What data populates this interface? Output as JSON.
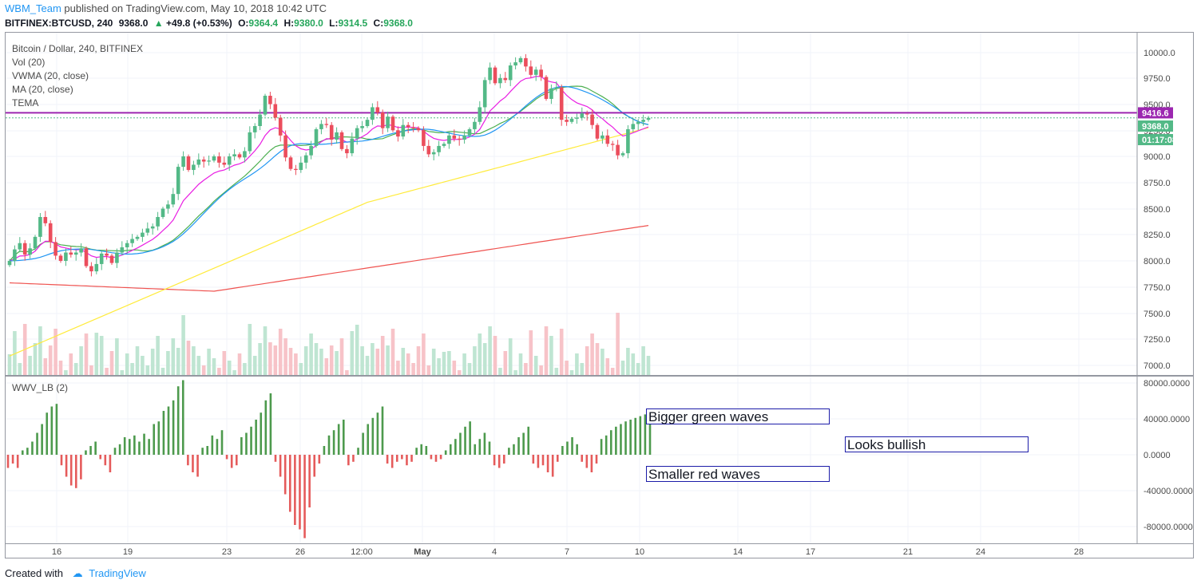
{
  "header": {
    "user": "WBM_Team",
    "published": "published on TradingView.com, May 10, 2018 10:42 UTC",
    "symbol": "BITFINEX:BTCUSD, 240",
    "last": "9368.0",
    "change": "+49.8 (+0.53%)",
    "open_label": "O:",
    "open": "9364.4",
    "high_label": "H:",
    "high": "9380.0",
    "low_label": "L:",
    "low": "9314.5",
    "close_label": "C:",
    "close": "9368.0"
  },
  "legend": [
    "Bitcoin / Dollar, 240, BITFINEX",
    "Vol (20)",
    "VWMA (20, close)",
    "MA (20, close)",
    "TEMA"
  ],
  "indicator_legend": "WWV_LB (2)",
  "price_badges": {
    "level": "9416.6",
    "last": "9368.0",
    "countdown": "01:17:08"
  },
  "annotations": {
    "green": "Bigger green waves",
    "bullish": "Looks bullish",
    "red": "Smaller red waves"
  },
  "footer": {
    "created": "Created with",
    "brand": "TradingView"
  },
  "colors": {
    "up": "#53b987",
    "down": "#eb4d5c",
    "vol_up": "#bfe5d2",
    "vol_down": "#f7c3c8",
    "tema": "#2196f3",
    "vwma": "#e91ee3",
    "ma20": "#4caf50",
    "ma50": "#ffeb3b",
    "ma200": "#ef5350",
    "level_line": "#9c27b0",
    "wave_up": "#4d9a4d",
    "wave_down": "#e55b5b",
    "accent": "#2196f3"
  },
  "chart_data": [
    {
      "type": "candlestick",
      "title": "Bitcoin / Dollar, 240, BITFINEX",
      "x_tick_labels": [
        "16",
        "19",
        "23",
        "26",
        "12:00",
        "May",
        "4",
        "7",
        "10",
        "14",
        "17",
        "21",
        "24",
        "28"
      ],
      "ylim": [
        6950,
        10100
      ],
      "y_tick_labels": [
        "10000.0",
        "9750.0",
        "9500.0",
        "9250.0",
        "9000.0",
        "8750.0",
        "8500.0",
        "8250.0",
        "8000.0",
        "7750.0",
        "7500.0",
        "7250.0",
        "7000.0"
      ],
      "horizontal_line": 9416.6,
      "close_series": [
        8000,
        8110,
        8170,
        8060,
        8120,
        8230,
        8420,
        8360,
        8180,
        8050,
        8000,
        8080,
        8060,
        8080,
        8120,
        7950,
        7900,
        7970,
        8070,
        8050,
        7980,
        8080,
        8130,
        8170,
        8210,
        8230,
        8270,
        8310,
        8330,
        8420,
        8500,
        8540,
        8640,
        8900,
        9000,
        8870,
        8920,
        8970,
        8950,
        8960,
        9000,
        8940,
        8920,
        9000,
        9020,
        8990,
        9050,
        9230,
        9290,
        9400,
        9580,
        9500,
        9370,
        9200,
        8990,
        8880,
        8870,
        8940,
        9010,
        9100,
        9260,
        9310,
        9300,
        9160,
        9230,
        9070,
        9030,
        9170,
        9270,
        9290,
        9350,
        9470,
        9420,
        9270,
        9380,
        9250,
        9190,
        9300,
        9280,
        9270,
        9250,
        9100,
        9020,
        9040,
        9100,
        9120,
        9200,
        9170,
        9160,
        9200,
        9260,
        9330,
        9470,
        9730,
        9850,
        9700,
        9750,
        9730,
        9870,
        9900,
        9940,
        9860,
        9780,
        9830,
        9760,
        9550,
        9650,
        9660,
        9350,
        9330,
        9360,
        9370,
        9410,
        9400,
        9300,
        9170,
        9200,
        9120,
        9110,
        9010,
        9030,
        9260,
        9310,
        9330,
        9350,
        9368
      ],
      "lines": [
        "TEMA",
        "VWMA (20, close)",
        "MA (20, close)",
        "MA 50",
        "MA 200"
      ]
    },
    {
      "type": "bar",
      "title": "Vol (20)"
    },
    {
      "type": "bar",
      "title": "WWV_LB (2)",
      "ylim": [
        -95000,
        85000
      ],
      "y_tick_labels": [
        "80000.0000",
        "40000.0000",
        "0.0000",
        "-40000.0000",
        "-80000.0000"
      ],
      "values": [
        -15,
        -10,
        -15,
        5,
        8,
        15,
        25,
        35,
        48,
        55,
        58,
        -12,
        -25,
        -35,
        -38,
        -28,
        5,
        10,
        15,
        -5,
        -12,
        -20,
        8,
        12,
        20,
        18,
        22,
        15,
        24,
        18,
        35,
        38,
        50,
        55,
        62,
        78,
        85,
        -12,
        -20,
        -25,
        8,
        10,
        22,
        18,
        28,
        -5,
        -15,
        -12,
        20,
        25,
        32,
        40,
        48,
        62,
        70,
        -8,
        -25,
        -45,
        -65,
        -80,
        -85,
        -95,
        -60,
        -25,
        -10,
        10,
        22,
        28,
        35,
        40,
        -12,
        -8,
        8,
        25,
        35,
        42,
        48,
        55,
        -10,
        -15,
        -8,
        -5,
        -12,
        -8,
        8,
        12,
        10,
        -5,
        -8,
        -5,
        5,
        12,
        18,
        25,
        32,
        38,
        12,
        18,
        25,
        15,
        -12,
        -15,
        -10,
        8,
        12,
        20,
        25,
        32,
        -10,
        -15,
        -12,
        -20,
        -25,
        -8,
        10,
        15,
        20,
        12,
        -8,
        -15,
        -20,
        -10,
        18,
        22,
        28,
        32,
        35,
        38,
        40,
        42,
        44,
        46,
        48
      ],
      "unit_note": ""
    }
  ]
}
